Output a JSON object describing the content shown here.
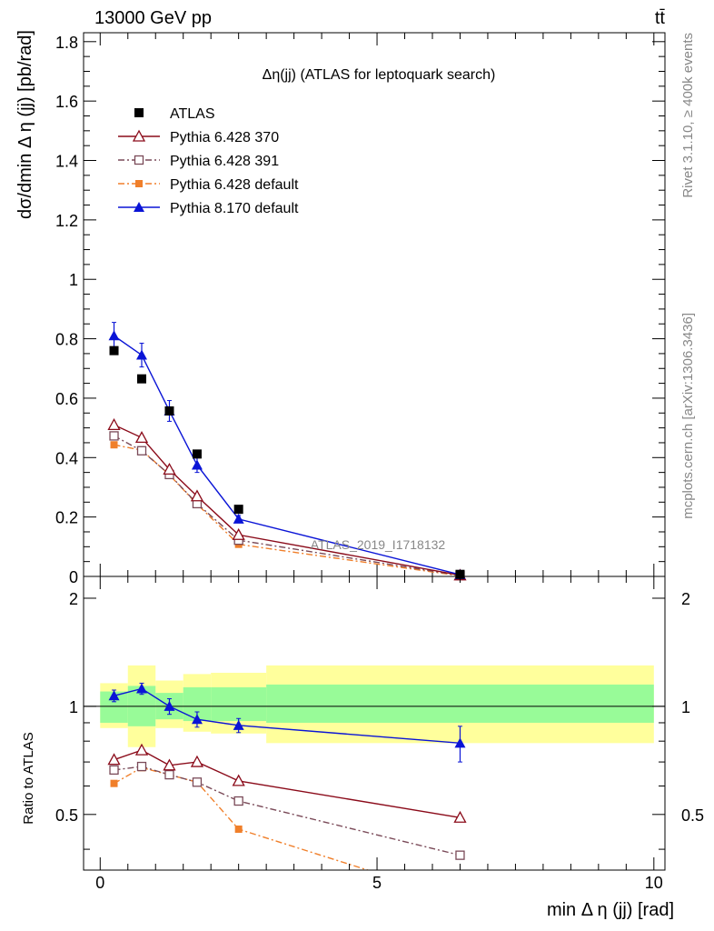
{
  "header": {
    "left": "13000 GeV pp",
    "right": "tt̄"
  },
  "side_labels": {
    "top": "Rivet 3.1.10, ≥ 400k events",
    "bottom": "mcplots.cern.ch [arXiv:1306.3436]"
  },
  "colors": {
    "atlas": "#000000",
    "p370": "#8b0b1a",
    "p391": "#7a4a58",
    "p6def": "#f07f2a",
    "p8def": "#0a14d6",
    "band_inner": "#98fb98",
    "band_outer": "#ffff9c"
  },
  "chart_data": [
    {
      "type": "scatter",
      "panel": "main",
      "title": "Δη(jj) (ATLAS for leptoquark search)",
      "ylabel": "dσ/dmin Δ η (jj) [pb/rad]",
      "watermark": "ATLAS_2019_I1718132",
      "xlim": [
        -0.3,
        10.2
      ],
      "ylim": [
        0,
        1.83
      ],
      "yticks": [
        "0",
        "0.2",
        "0.4",
        "0.6",
        "0.8",
        "1",
        "1.2",
        "1.4",
        "1.6",
        "1.8"
      ],
      "legend": {
        "position": "top-left"
      },
      "series": [
        {
          "key": "atlas",
          "name": "ATLAS",
          "marker": "square",
          "line": "none",
          "color": "#000000",
          "x": [
            0.25,
            0.75,
            1.25,
            1.75,
            2.5,
            6.5
          ],
          "y": [
            0.76,
            0.665,
            0.557,
            0.412,
            0.226,
            0.007
          ]
        },
        {
          "key": "p370",
          "name": "Pythia 6.428 370",
          "marker": "triangle-open",
          "line": "solid",
          "color": "#8b0b1a",
          "x": [
            0.25,
            0.75,
            1.25,
            1.75,
            2.5,
            6.5
          ],
          "y": [
            0.51,
            0.467,
            0.36,
            0.27,
            0.14,
            0.004
          ]
        },
        {
          "key": "p391",
          "name": "Pythia 6.428 391",
          "marker": "square-open",
          "line": "dashdot",
          "color": "#7a4a58",
          "x": [
            0.25,
            0.75,
            1.25,
            1.75,
            2.5,
            6.5
          ],
          "y": [
            0.473,
            0.423,
            0.343,
            0.245,
            0.122,
            0.003
          ]
        },
        {
          "key": "p6def",
          "name": "Pythia 6.428 default",
          "marker": "square-small",
          "line": "dashdot",
          "color": "#f07f2a",
          "x": [
            0.25,
            0.75,
            1.25,
            1.75,
            2.5,
            6.5
          ],
          "y": [
            0.443,
            0.425,
            0.342,
            0.243,
            0.108,
            0.002
          ]
        },
        {
          "key": "p8def",
          "name": "Pythia 8.170 default",
          "marker": "triangle",
          "line": "solid",
          "color": "#0a14d6",
          "x": [
            0.25,
            0.75,
            1.25,
            1.75,
            2.5,
            6.5
          ],
          "y": [
            0.81,
            0.745,
            0.557,
            0.375,
            0.193,
            0.006
          ],
          "yerr": [
            0.045,
            0.04,
            0.035,
            0.025,
            0.012,
            0.001
          ]
        }
      ]
    },
    {
      "type": "scatter",
      "panel": "ratio",
      "xlabel": "min Δ η (jj) [rad]",
      "ylabel": "Ratio to ATLAS",
      "xlim": [
        -0.3,
        10.2
      ],
      "ylim": [
        0.35,
        2.3
      ],
      "xticks": [
        "0",
        "5",
        "10"
      ],
      "yticks": [
        "0.5",
        "1",
        "2"
      ],
      "reference": 1,
      "bands": {
        "edges": [
          0,
          0.5,
          1.0,
          1.5,
          2.0,
          3.0,
          10.0
        ],
        "inner": [
          [
            0.9,
            1.1
          ],
          [
            0.88,
            1.14
          ],
          [
            0.92,
            1.09
          ],
          [
            0.91,
            1.13
          ],
          [
            0.91,
            1.13
          ],
          [
            0.9,
            1.15
          ]
        ],
        "outer": [
          [
            0.87,
            1.16
          ],
          [
            0.77,
            1.3
          ],
          [
            0.87,
            1.18
          ],
          [
            0.85,
            1.23
          ],
          [
            0.84,
            1.24
          ],
          [
            0.79,
            1.3
          ]
        ]
      },
      "series": [
        {
          "key": "p370",
          "name": "Pythia 6.428 370",
          "marker": "triangle-open",
          "line": "solid",
          "color": "#8b0b1a",
          "x": [
            0.25,
            0.75,
            1.25,
            1.75,
            2.5,
            6.5
          ],
          "y": [
            0.71,
            0.755,
            0.685,
            0.7,
            0.62,
            0.49
          ]
        },
        {
          "key": "p391",
          "name": "Pythia 6.428 391",
          "marker": "square-open",
          "line": "dashdot",
          "color": "#7a4a58",
          "x": [
            0.25,
            0.75,
            1.25,
            1.75,
            2.5,
            6.5
          ],
          "y": [
            0.665,
            0.68,
            0.645,
            0.615,
            0.545,
            0.385
          ]
        },
        {
          "key": "p6def",
          "name": "Pythia 6.428 default",
          "marker": "square-small",
          "line": "dashdot",
          "color": "#f07f2a",
          "x": [
            0.25,
            0.75,
            1.25,
            1.75,
            2.5,
            6.5
          ],
          "y": [
            0.61,
            0.675,
            0.645,
            0.615,
            0.455,
            0.29
          ]
        },
        {
          "key": "p8def",
          "name": "Pythia 8.170 default",
          "marker": "triangle",
          "line": "solid",
          "color": "#0a14d6",
          "x": [
            0.25,
            0.75,
            1.25,
            1.75,
            2.5,
            6.5
          ],
          "y": [
            1.07,
            1.12,
            1.0,
            0.92,
            0.885,
            0.79
          ],
          "yerr": [
            0.04,
            0.04,
            0.05,
            0.045,
            0.04,
            0.09
          ]
        }
      ]
    }
  ]
}
